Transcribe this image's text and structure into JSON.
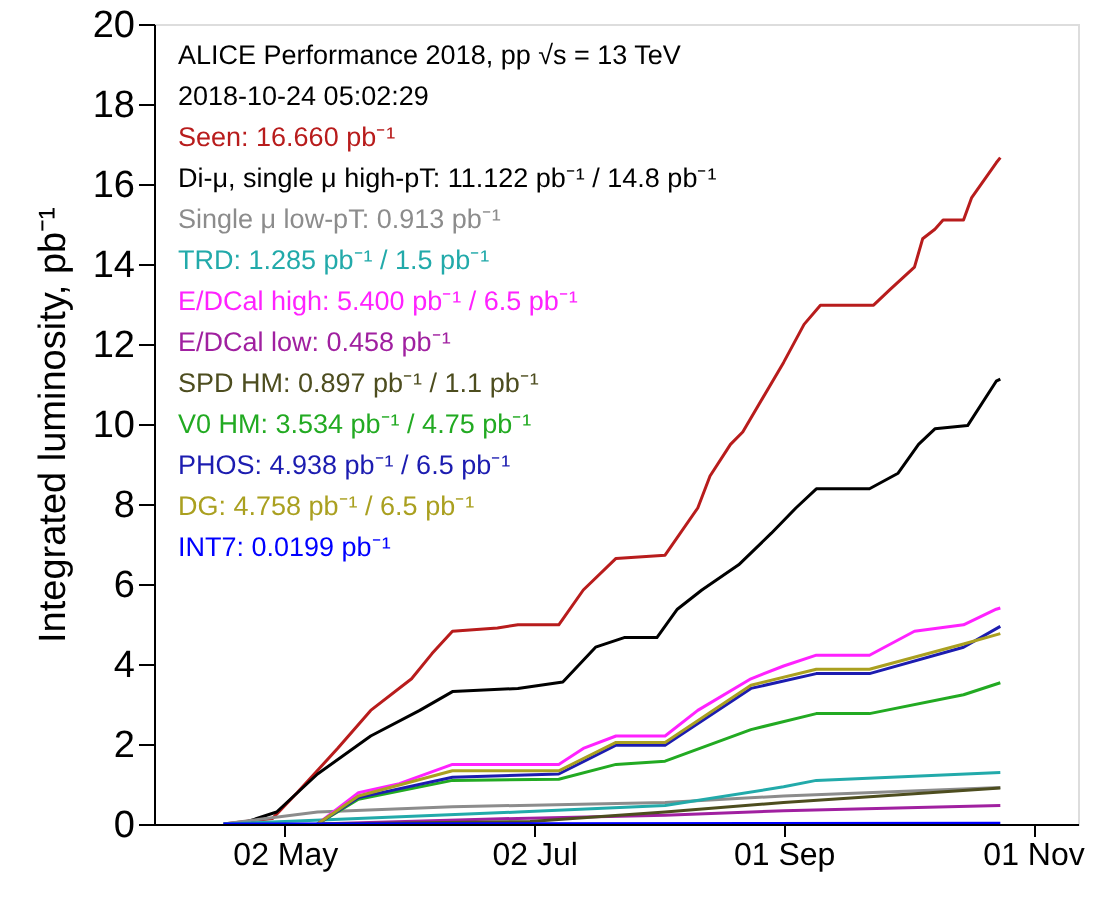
{
  "chart_data": {
    "type": "line",
    "ylabel": "Integrated luminosity, pb⁻¹",
    "annotations": [
      "ALICE Performance 2018, pp √s = 13 TeV",
      "2018-10-24 05:02:29"
    ],
    "xlim": [
      "2018-03-31",
      "2018-11-12"
    ],
    "xticks": [
      {
        "value": "2018-05-02",
        "label": "02 May"
      },
      {
        "value": "2018-07-02",
        "label": "02 Jul"
      },
      {
        "value": "2018-09-01",
        "label": "01 Sep"
      },
      {
        "value": "2018-11-01",
        "label": "01 Nov"
      }
    ],
    "ylim": [
      0,
      20
    ],
    "yticks": [
      0,
      2,
      4,
      6,
      8,
      10,
      12,
      14,
      16,
      18,
      20
    ],
    "grid": false,
    "legend": "top left",
    "line_style": "solid",
    "series": [
      {
        "name": "Seen: 16.660 pb⁻¹",
        "color": "#b81c1c",
        "x": [
          "2018-04-17",
          "2018-04-29",
          "2018-05-05",
          "2018-05-15",
          "2018-05-23",
          "2018-06-02",
          "2018-06-07",
          "2018-06-12",
          "2018-06-23",
          "2018-06-28",
          "2018-07-08",
          "2018-07-14",
          "2018-07-22",
          "2018-08-03",
          "2018-08-11",
          "2018-08-14",
          "2018-08-19",
          "2018-08-22",
          "2018-09-01",
          "2018-09-06",
          "2018-09-10",
          "2018-09-23",
          "2018-09-27",
          "2018-10-03",
          "2018-10-05",
          "2018-10-08",
          "2018-10-10",
          "2018-10-15",
          "2018-10-17",
          "2018-10-23",
          "2018-10-24"
        ],
        "values": [
          0,
          0.14,
          0.78,
          1.9,
          2.84,
          3.63,
          4.26,
          4.82,
          4.9,
          4.98,
          4.98,
          5.85,
          6.64,
          6.72,
          7.9,
          8.7,
          9.49,
          9.8,
          11.54,
          12.49,
          12.97,
          12.97,
          13.36,
          13.92,
          14.63,
          14.87,
          15.1,
          15.1,
          15.66,
          16.53,
          16.66
        ]
      },
      {
        "name": "Di-μ, single μ high-pT: 11.122 pb⁻¹ / 14.8 pb⁻¹",
        "color": "#000000",
        "x": [
          "2018-04-21",
          "2018-04-30",
          "2018-05-10",
          "2018-05-23",
          "2018-06-04",
          "2018-06-12",
          "2018-06-28",
          "2018-07-09",
          "2018-07-17",
          "2018-07-24",
          "2018-08-01",
          "2018-08-06",
          "2018-08-12",
          "2018-08-21",
          "2018-08-29",
          "2018-09-04",
          "2018-09-09",
          "2018-09-22",
          "2018-09-29",
          "2018-10-04",
          "2018-10-08",
          "2018-10-16",
          "2018-10-23",
          "2018-10-24"
        ],
        "values": [
          0,
          0.3,
          1.25,
          2.2,
          2.84,
          3.31,
          3.39,
          3.55,
          4.42,
          4.66,
          4.66,
          5.37,
          5.85,
          6.48,
          7.27,
          7.9,
          8.38,
          8.38,
          8.77,
          9.49,
          9.88,
          9.96,
          11.07,
          11.12
        ]
      },
      {
        "name": "Single μ low-pT: 0.913 pb⁻¹",
        "color": "#8c8c8c",
        "x": [
          "2018-04-17",
          "2018-05-10",
          "2018-06-12",
          "2018-08-03",
          "2018-09-01",
          "2018-10-24"
        ],
        "values": [
          0,
          0.3,
          0.43,
          0.54,
          0.7,
          0.91
        ]
      },
      {
        "name": "TRD: 1.285 pb⁻¹ / 1.5 pb⁻¹",
        "color": "#22aaaa",
        "x": [
          "2018-04-17",
          "2018-06-28",
          "2018-08-03",
          "2018-09-01",
          "2018-09-09",
          "2018-10-24"
        ],
        "values": [
          0,
          0.3,
          0.46,
          0.93,
          1.09,
          1.29
        ]
      },
      {
        "name": "E/DCal high: 5.400 pb⁻¹ / 6.5 pb⁻¹",
        "color": "#ff22ff",
        "x": [
          "2018-05-10",
          "2018-05-20",
          "2018-05-30",
          "2018-06-12",
          "2018-07-08",
          "2018-07-14",
          "2018-07-22",
          "2018-08-03",
          "2018-08-11",
          "2018-08-24",
          "2018-09-01",
          "2018-09-09",
          "2018-09-22",
          "2018-10-03",
          "2018-10-15",
          "2018-10-23",
          "2018-10-24"
        ],
        "values": [
          0,
          0.78,
          1.01,
          1.49,
          1.49,
          1.89,
          2.2,
          2.2,
          2.84,
          3.63,
          3.95,
          4.22,
          4.22,
          4.82,
          4.98,
          5.37,
          5.4
        ]
      },
      {
        "name": "E/DCal low: 0.458 pb⁻¹",
        "color": "#a020a0",
        "x": [
          "2018-05-10",
          "2018-06-28",
          "2018-08-03",
          "2018-09-01",
          "2018-10-24"
        ],
        "values": [
          0,
          0.14,
          0.22,
          0.33,
          0.46
        ]
      },
      {
        "name": "SPD HM: 0.897 pb⁻¹ / 1.1 pb⁻¹",
        "color": "#4d4d1f",
        "x": [
          "2018-05-10",
          "2018-07-01",
          "2018-08-03",
          "2018-09-01",
          "2018-10-24"
        ],
        "values": [
          0,
          0.06,
          0.3,
          0.54,
          0.9
        ]
      },
      {
        "name": "V0 HM: 3.534 pb⁻¹ / 4.75 pb⁻¹",
        "color": "#22aa22",
        "x": [
          "2018-05-10",
          "2018-05-20",
          "2018-06-12",
          "2018-07-08",
          "2018-07-22",
          "2018-08-03",
          "2018-08-24",
          "2018-09-09",
          "2018-09-22",
          "2018-10-15",
          "2018-10-24"
        ],
        "values": [
          0,
          0.62,
          1.09,
          1.12,
          1.49,
          1.57,
          2.36,
          2.76,
          2.76,
          3.23,
          3.53
        ]
      },
      {
        "name": "PHOS: 4.938 pb⁻¹ / 6.5 pb⁻¹",
        "color": "#1c1cb0",
        "x": [
          "2018-05-10",
          "2018-05-20",
          "2018-06-12",
          "2018-07-08",
          "2018-07-22",
          "2018-08-03",
          "2018-08-24",
          "2018-09-09",
          "2018-09-22",
          "2018-10-15",
          "2018-10-24"
        ],
        "values": [
          0,
          0.66,
          1.17,
          1.25,
          1.97,
          1.97,
          3.39,
          3.76,
          3.76,
          4.42,
          4.94
        ]
      },
      {
        "name": "DG: 4.758 pb⁻¹ / 6.5 pb⁻¹",
        "color": "#aaa020",
        "x": [
          "2018-05-10",
          "2018-05-20",
          "2018-06-12",
          "2018-07-08",
          "2018-07-22",
          "2018-08-03",
          "2018-08-24",
          "2018-09-09",
          "2018-09-22",
          "2018-10-15",
          "2018-10-24"
        ],
        "values": [
          0,
          0.7,
          1.33,
          1.33,
          2.04,
          2.04,
          3.47,
          3.87,
          3.87,
          4.5,
          4.76
        ]
      },
      {
        "name": "INT7: 0.0199 pb⁻¹",
        "color": "#0000ff",
        "x": [
          "2018-04-17",
          "2018-10-24"
        ],
        "values": [
          0,
          0.02
        ]
      }
    ]
  }
}
